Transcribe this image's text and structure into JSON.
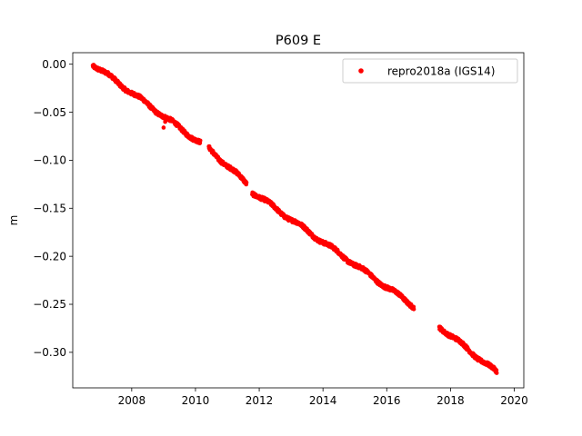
{
  "chart_data": {
    "type": "scatter",
    "title": "P609 E",
    "xlabel": "",
    "ylabel": "m",
    "xlim": [
      2006.15,
      2020.3
    ],
    "ylim": [
      -0.337,
      0.012
    ],
    "xticks": [
      2008,
      2010,
      2012,
      2014,
      2016,
      2018,
      2020
    ],
    "yticks": [
      0.0,
      -0.05,
      -0.1,
      -0.15,
      -0.2,
      -0.25,
      -0.3
    ],
    "ytick_labels": [
      "0.00",
      "−0.05",
      "−0.10",
      "−0.15",
      "−0.20",
      "−0.25",
      "−0.30"
    ],
    "grid": false,
    "legend_position": "top-right",
    "series": [
      {
        "name": "repro2018a (IGS14)",
        "color": "#ff0000",
        "marker": "circle",
        "segments": [
          {
            "x_start": 2006.78,
            "x_end": 2010.15,
            "y_start": 0.0,
            "y_end": -0.082
          },
          {
            "x_start": 2010.42,
            "x_end": 2011.6,
            "y_start": -0.088,
            "y_end": -0.124
          },
          {
            "x_start": 2011.78,
            "x_end": 2016.85,
            "y_start": -0.133,
            "y_end": -0.252
          },
          {
            "x_start": 2017.65,
            "x_end": 2019.45,
            "y_start": -0.273,
            "y_end": -0.321
          }
        ],
        "outliers": [
          {
            "x": 2009.0,
            "y": -0.066
          },
          {
            "x": 2009.05,
            "y": -0.06
          }
        ]
      }
    ]
  }
}
